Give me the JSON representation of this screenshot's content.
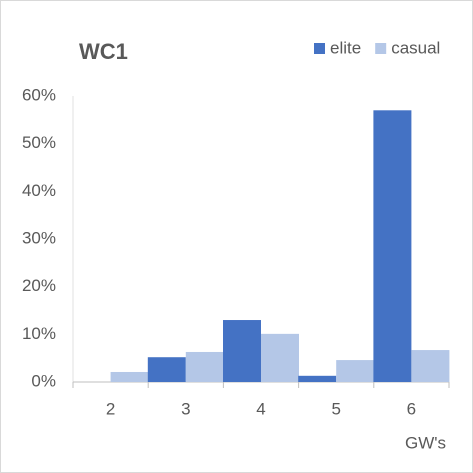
{
  "chart_data": {
    "type": "bar",
    "title": "WC1",
    "x_label": "GW's",
    "categories": [
      "2",
      "3",
      "4",
      "5",
      "6"
    ],
    "series": [
      {
        "name": "elite",
        "color": "#4472c4",
        "values": [
          0,
          5.2,
          13,
          1.3,
          57
        ]
      },
      {
        "name": "casual",
        "color": "#b4c7e7",
        "values": [
          2.1,
          6.3,
          10.1,
          4.6,
          6.7
        ]
      }
    ],
    "ylim": [
      0,
      60
    ],
    "yticks": [
      {
        "value": 0,
        "label": "0%"
      },
      {
        "value": 10,
        "label": "10%"
      },
      {
        "value": 20,
        "label": "20%"
      },
      {
        "value": 30,
        "label": "30%"
      },
      {
        "value": 40,
        "label": "40%"
      },
      {
        "value": 50,
        "label": "50%"
      },
      {
        "value": 60,
        "label": "60%"
      }
    ],
    "grid": false,
    "legend": "top-right"
  }
}
